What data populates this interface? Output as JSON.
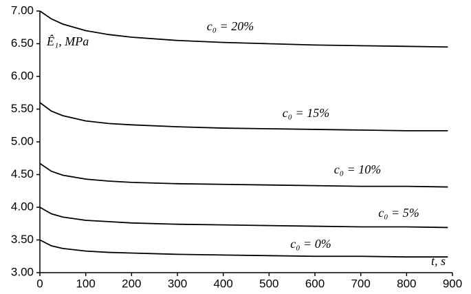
{
  "chart_data": {
    "type": "line",
    "x_label": "t, s",
    "y_label": "Ê₁, MPa",
    "x": [
      0,
      25,
      50,
      100,
      150,
      200,
      300,
      400,
      500,
      600,
      700,
      800,
      890
    ],
    "series": [
      {
        "name": "c₀ = 20%",
        "color": "#000000",
        "values": [
          7.0,
          6.88,
          6.8,
          6.7,
          6.64,
          6.6,
          6.55,
          6.52,
          6.5,
          6.48,
          6.47,
          6.46,
          6.45
        ]
      },
      {
        "name": "c₀ = 15%",
        "color": "#000000",
        "values": [
          5.6,
          5.47,
          5.4,
          5.32,
          5.28,
          5.26,
          5.23,
          5.21,
          5.2,
          5.19,
          5.18,
          5.17,
          5.17
        ]
      },
      {
        "name": "c₀ = 10%",
        "color": "#000000",
        "values": [
          4.67,
          4.55,
          4.49,
          4.43,
          4.4,
          4.38,
          4.36,
          4.35,
          4.34,
          4.33,
          4.32,
          4.32,
          4.31
        ]
      },
      {
        "name": "c₀ = 5%",
        "color": "#000000",
        "values": [
          4.0,
          3.9,
          3.85,
          3.8,
          3.78,
          3.76,
          3.74,
          3.73,
          3.72,
          3.71,
          3.7,
          3.7,
          3.69
        ]
      },
      {
        "name": "c₀ = 0%",
        "color": "#000000",
        "values": [
          3.5,
          3.41,
          3.37,
          3.33,
          3.31,
          3.3,
          3.28,
          3.27,
          3.26,
          3.25,
          3.25,
          3.24,
          3.24
        ]
      }
    ],
    "xlim": [
      0,
      900
    ],
    "xticks": [
      0,
      100,
      200,
      300,
      400,
      500,
      600,
      700,
      800,
      900
    ],
    "ylim": [
      3,
      7
    ],
    "yticks": [
      {
        "value": 3,
        "label": "3.00"
      },
      {
        "value": 3.5,
        "label": "3.50"
      },
      {
        "value": 4,
        "label": "4.00"
      },
      {
        "value": 4.5,
        "label": "4.50"
      },
      {
        "value": 5,
        "label": "5.00"
      },
      {
        "value": 5.5,
        "label": "5.50"
      },
      {
        "value": 6,
        "label": "6.00"
      },
      {
        "value": 6.5,
        "label": "6.50"
      },
      {
        "value": 7,
        "label": "7.00"
      }
    ],
    "grid": false
  }
}
